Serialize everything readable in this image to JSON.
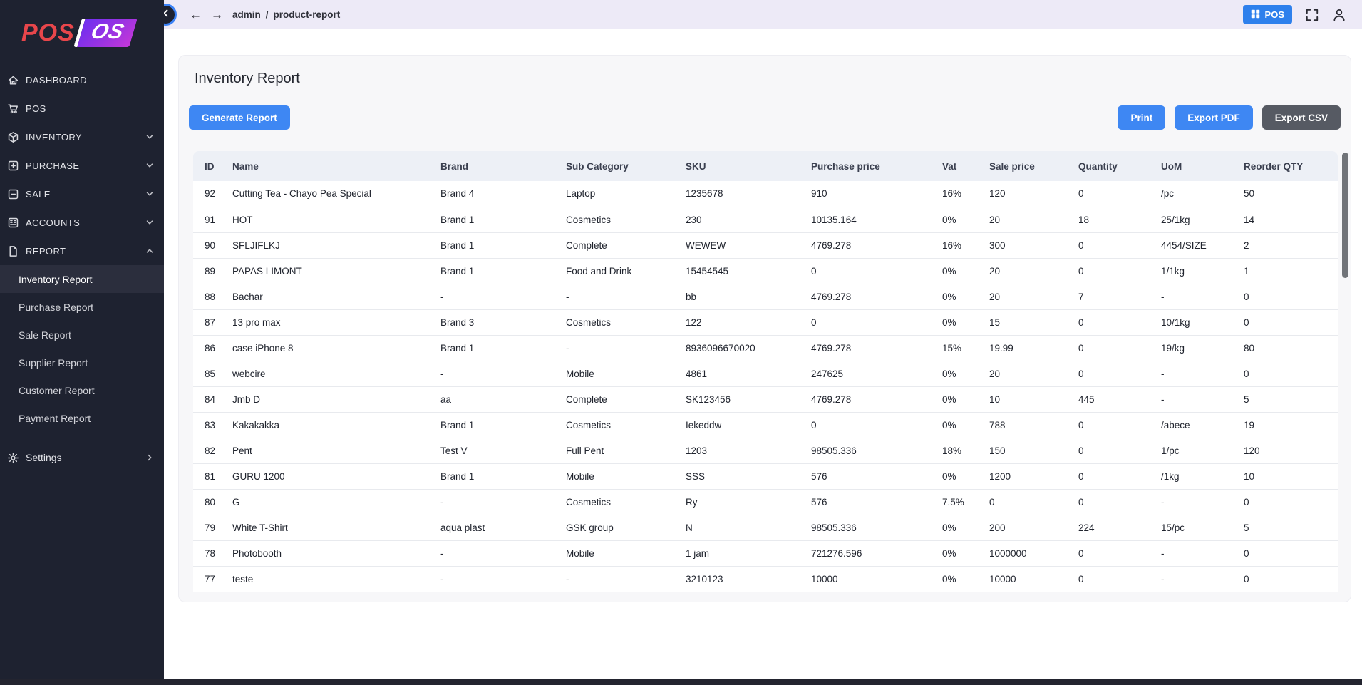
{
  "colors": {
    "accent_blue": "#3b82f6",
    "button_blue": "#3e87f3",
    "export_csv_gray": "#565a63",
    "topbar_pos_blue": "#2e80ec",
    "sidebar_bg": "#1e2230",
    "sidebar_selected_bg": "#2b2e3d",
    "topbar_bg": "#edeaf7",
    "card_bg": "#f7f7f9",
    "table_header_bg": "#edf0f6",
    "logo_red": "#e8464b",
    "logo_gradient_start": "#6f2ff0",
    "logo_gradient_end": "#c438d8"
  },
  "sidebar": {
    "logo": {
      "part1": "POS",
      "part2": "OS"
    },
    "items": [
      {
        "label": "DASHBOARD",
        "icon": "home-icon",
        "chevron": null
      },
      {
        "label": "POS",
        "icon": "cart-icon",
        "chevron": null
      },
      {
        "label": "INVENTORY",
        "icon": "package-icon",
        "chevron": "down"
      },
      {
        "label": "PURCHASE",
        "icon": "plus-square-icon",
        "chevron": "down"
      },
      {
        "label": "SALE",
        "icon": "minus-square-icon",
        "chevron": "down"
      },
      {
        "label": "ACCOUNTS",
        "icon": "ledger-icon",
        "chevron": "down"
      },
      {
        "label": "REPORT",
        "icon": "file-icon",
        "chevron": "up"
      }
    ],
    "report_subitems": [
      {
        "label": "Inventory Report",
        "active": true
      },
      {
        "label": "Purchase Report",
        "active": false
      },
      {
        "label": "Sale Report",
        "active": false
      },
      {
        "label": "Supplier Report",
        "active": false
      },
      {
        "label": "Customer Report",
        "active": false
      },
      {
        "label": "Payment Report",
        "active": false
      }
    ],
    "settings": {
      "label": "Settings",
      "icon": "gear-icon",
      "chevron": "right"
    }
  },
  "topbar": {
    "breadcrumb": {
      "section": "admin",
      "separator": "/",
      "page": "product-report"
    },
    "back_arrow": "←",
    "forward_arrow": "→",
    "pos_button_label": "POS"
  },
  "page": {
    "title": "Inventory Report",
    "generate_button": "Generate Report",
    "print_button": "Print",
    "export_pdf_button": "Export PDF",
    "export_csv_button": "Export CSV"
  },
  "table": {
    "headers": [
      "ID",
      "Name",
      "Brand",
      "Sub Category",
      "SKU",
      "Purchase price",
      "Vat",
      "Sale price",
      "Quantity",
      "UoM",
      "Reorder QTY"
    ],
    "rows": [
      [
        "92",
        "Cutting Tea - Chayo Pea Special",
        "Brand 4",
        "Laptop",
        "1235678",
        "910",
        "16%",
        "120",
        "0",
        "/pc",
        "50"
      ],
      [
        "91",
        "HOT",
        "Brand 1",
        "Cosmetics",
        "230",
        "10135.164",
        "0%",
        "20",
        "18",
        "25/1kg",
        "14"
      ],
      [
        "90",
        "SFLJIFLKJ",
        "Brand 1",
        "Complete",
        "WEWEW",
        "4769.278",
        "16%",
        "300",
        "0",
        "4454/SIZE",
        "2"
      ],
      [
        "89",
        "PAPAS LIMONT",
        "Brand 1",
        "Food and Drink",
        "15454545",
        "0",
        "0%",
        "20",
        "0",
        "1/1kg",
        "1"
      ],
      [
        "88",
        "Bachar",
        "-",
        "-",
        "bb",
        "4769.278",
        "0%",
        "20",
        "7",
        "-",
        "0"
      ],
      [
        "87",
        "13 pro max",
        "Brand 3",
        "Cosmetics",
        "122",
        "0",
        "0%",
        "15",
        "0",
        "10/1kg",
        "0"
      ],
      [
        "86",
        "case iPhone 8",
        "Brand 1",
        "-",
        "8936096670020",
        "4769.278",
        "15%",
        "19.99",
        "0",
        "19/kg",
        "80"
      ],
      [
        "85",
        "webcire",
        "-",
        "Mobile",
        "4861",
        "247625",
        "0%",
        "20",
        "0",
        "-",
        "0"
      ],
      [
        "84",
        "Jmb D",
        "aa",
        "Complete",
        "SK123456",
        "4769.278",
        "0%",
        "10",
        "445",
        "-",
        "5"
      ],
      [
        "83",
        "Kakakakka",
        "Brand 1",
        "Cosmetics",
        "Iekeddw",
        "0",
        "0%",
        "788",
        "0",
        "/abece",
        "19"
      ],
      [
        "82",
        "Pent",
        "Test V",
        "Full Pent",
        "1203",
        "98505.336",
        "18%",
        "150",
        "0",
        "1/pc",
        "120"
      ],
      [
        "81",
        "GURU 1200",
        "Brand 1",
        "Mobile",
        "SSS",
        "576",
        "0%",
        "1200",
        "0",
        "/1kg",
        "10"
      ],
      [
        "80",
        "G",
        "-",
        "Cosmetics",
        "Ry",
        "576",
        "7.5%",
        "0",
        "0",
        "-",
        "0"
      ],
      [
        "79",
        "White T-Shirt",
        "aqua plast",
        "GSK group",
        "N",
        "98505.336",
        "0%",
        "200",
        "224",
        "15/pc",
        "5"
      ],
      [
        "78",
        "Photobooth",
        "-",
        "Mobile",
        "1 jam",
        "721276.596",
        "0%",
        "1000000",
        "0",
        "-",
        "0"
      ],
      [
        "77",
        "teste",
        "-",
        "-",
        "3210123",
        "10000",
        "0%",
        "10000",
        "0",
        "-",
        "0"
      ]
    ]
  }
}
